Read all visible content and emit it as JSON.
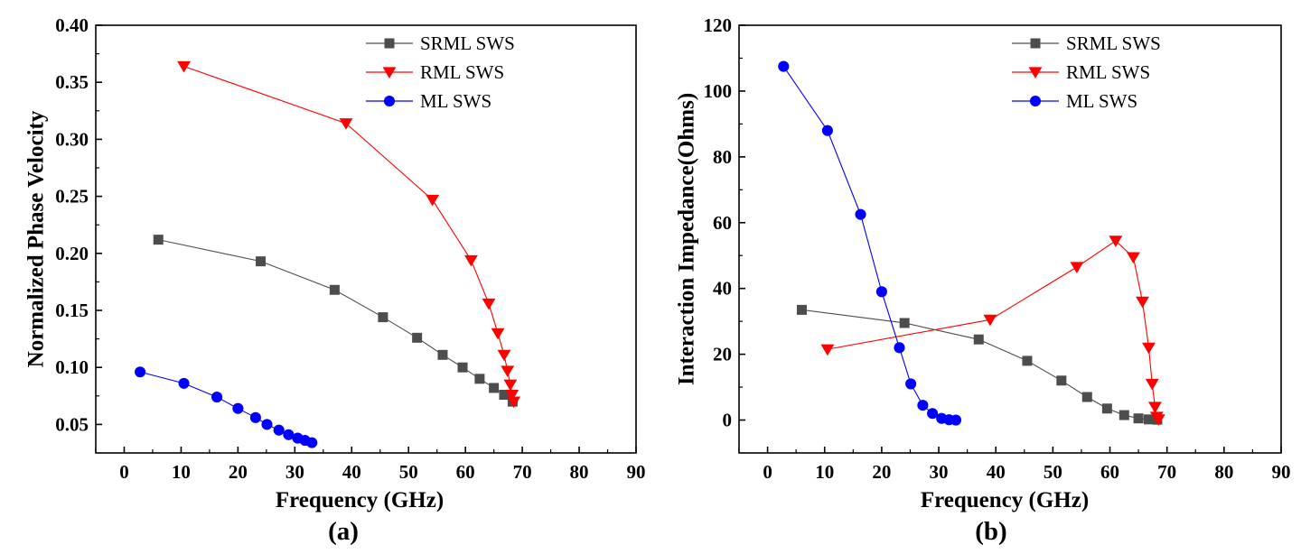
{
  "chart_data": [
    {
      "type": "line",
      "panel_label": "(a)",
      "xlabel": "Frequency (GHz)",
      "ylabel": "Normalized Phase Velocity",
      "xlim": [
        -5,
        90
      ],
      "ylim": [
        0.025,
        0.4
      ],
      "xticks": [
        0,
        10,
        20,
        30,
        40,
        50,
        60,
        70,
        80,
        90
      ],
      "yticks": [
        0.05,
        0.1,
        0.15,
        0.2,
        0.25,
        0.3,
        0.35,
        0.4
      ],
      "ytick_labels": [
        "0.05",
        "0.10",
        "0.15",
        "0.20",
        "0.25",
        "0.30",
        "0.35",
        "0.40"
      ],
      "legend_position": "top-right",
      "series": [
        {
          "name": "SRML SWS",
          "color": "#4d4d4d",
          "marker": "square",
          "x": [
            6,
            24,
            37,
            45.5,
            51.5,
            56,
            59.5,
            62.5,
            65,
            66.8,
            68.3
          ],
          "y": [
            0.212,
            0.193,
            0.168,
            0.144,
            0.126,
            0.111,
            0.1,
            0.09,
            0.082,
            0.076,
            0.07
          ]
        },
        {
          "name": "RML SWS",
          "color": "#ff0000",
          "marker": "triangle-down",
          "x": [
            10.5,
            39,
            54.2,
            61,
            64.1,
            65.7,
            66.8,
            67.4,
            67.9,
            68.2,
            68.5
          ],
          "y": [
            0.364,
            0.314,
            0.247,
            0.194,
            0.156,
            0.13,
            0.111,
            0.097,
            0.085,
            0.076,
            0.07
          ]
        },
        {
          "name": "ML SWS",
          "color": "#0000ff",
          "marker": "circle",
          "x": [
            2.8,
            10.5,
            16.3,
            20,
            23.1,
            25.1,
            27.2,
            28.9,
            30.5,
            31.8,
            33
          ],
          "y": [
            0.096,
            0.086,
            0.074,
            0.064,
            0.056,
            0.05,
            0.045,
            0.041,
            0.038,
            0.036,
            0.034
          ]
        }
      ]
    },
    {
      "type": "line",
      "panel_label": "(b)",
      "xlabel": "Frequency (GHz)",
      "ylabel": "Interaction Impedance(Ohms)",
      "xlim": [
        -5,
        90
      ],
      "ylim": [
        -10,
        120
      ],
      "xticks": [
        0,
        10,
        20,
        30,
        40,
        50,
        60,
        70,
        80,
        90
      ],
      "yticks": [
        0,
        20,
        40,
        60,
        80,
        100,
        120
      ],
      "ytick_labels": [
        "0",
        "20",
        "40",
        "60",
        "80",
        "100",
        "120"
      ],
      "legend_position": "top-right",
      "series": [
        {
          "name": "SRML SWS",
          "color": "#4d4d4d",
          "marker": "square",
          "x": [
            6,
            24,
            37,
            45.5,
            51.5,
            56,
            59.5,
            62.5,
            65,
            66.8,
            68.3
          ],
          "y": [
            33.5,
            29.5,
            24.5,
            18,
            12,
            7,
            3.5,
            1.5,
            0.5,
            0.2,
            0.1
          ]
        },
        {
          "name": "RML SWS",
          "color": "#ff0000",
          "marker": "triangle-down",
          "x": [
            10.5,
            39,
            54.2,
            61,
            64.1,
            65.7,
            66.8,
            67.4,
            67.9,
            68.2,
            68.5
          ],
          "y": [
            21.5,
            30.5,
            46.5,
            54.5,
            49.5,
            36,
            22,
            11,
            4,
            1,
            0.2
          ]
        },
        {
          "name": "ML SWS",
          "color": "#0000ff",
          "marker": "circle",
          "x": [
            2.8,
            10.5,
            16.3,
            20,
            23.1,
            25.1,
            27.2,
            28.9,
            30.5,
            31.8,
            33
          ],
          "y": [
            107.5,
            88,
            62.5,
            39,
            22,
            11,
            4.5,
            2,
            0.5,
            0.1,
            0
          ]
        }
      ]
    }
  ]
}
